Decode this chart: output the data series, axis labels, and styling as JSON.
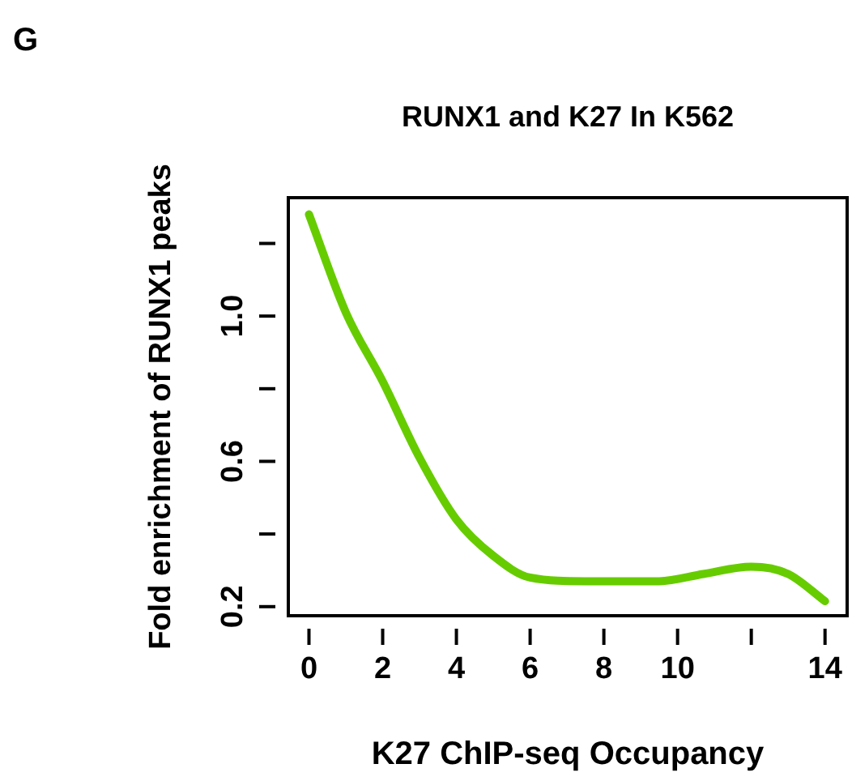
{
  "chart_data": {
    "type": "line",
    "title": "RUNX1 and K27 In K562",
    "xlabel": "K27 ChIP-seq Occupancy",
    "ylabel": "Fold enrichment of RUNX1 peaks",
    "annotations": [
      "G"
    ],
    "x": [
      0,
      1,
      2,
      3,
      4,
      5,
      6,
      7.5,
      9.5,
      10.7,
      12,
      13,
      14
    ],
    "series": [
      {
        "color": "#66cc00",
        "values": [
          1.28,
          1.01,
          0.82,
          0.61,
          0.44,
          0.34,
          0.28,
          0.27,
          0.27,
          0.29,
          0.31,
          0.29,
          0.215
        ]
      }
    ],
    "xlim": [
      -0.56,
      14.6
    ],
    "xticks": [
      0,
      2,
      4,
      6,
      8,
      10,
      {
        "value": 12,
        "label": null
      },
      14
    ],
    "ylim": [
      0.175,
      1.326
    ],
    "yticks": [
      0.2,
      {
        "value": 0.4,
        "label": null
      },
      0.6,
      {
        "value": 0.8,
        "label": null
      },
      {
        "value": 1.0,
        "label": "1.0"
      },
      {
        "value": 1.2,
        "label": null
      }
    ],
    "grid": false,
    "legend": false,
    "marker": "none",
    "line_style": "solid"
  }
}
